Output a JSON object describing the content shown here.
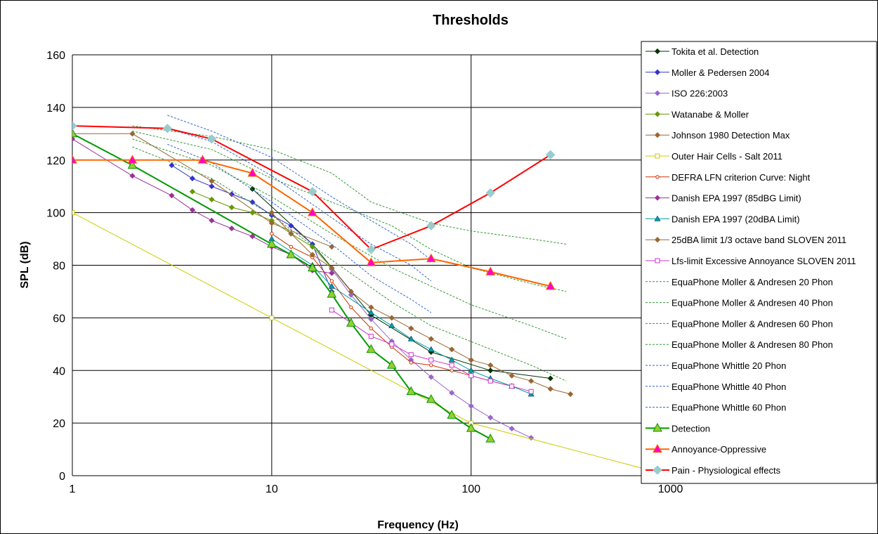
{
  "chart_data": {
    "type": "line",
    "title": "Thresholds",
    "xlabel": "Frequency (Hz)",
    "ylabel": "SPL (dB)",
    "x_scale": "log",
    "xlim": [
      1,
      3000
    ],
    "ylim": [
      0,
      160
    ],
    "x_ticks": [
      1,
      10,
      100,
      1000
    ],
    "x_tick_labels": [
      "1",
      "10",
      "100",
      "1000"
    ],
    "y_ticks": [
      0,
      20,
      40,
      60,
      80,
      100,
      120,
      140,
      160
    ],
    "y_tick_labels": [
      "0",
      "20",
      "40",
      "60",
      "80",
      "100",
      "120",
      "140",
      "160"
    ],
    "grid": true,
    "legend_position": "right",
    "series": [
      {
        "name": "Tokita et al. Detection",
        "color": "#003300",
        "marker": "diamond",
        "dash": "",
        "width": 1,
        "points": [
          [
            8,
            109
          ],
          [
            16,
            88
          ],
          [
            31.5,
            61
          ],
          [
            63,
            47
          ],
          [
            125,
            40
          ],
          [
            250,
            37
          ]
        ]
      },
      {
        "name": "Moller & Pedersen 2004",
        "color": "#3333cc",
        "marker": "diamond",
        "dash": "",
        "width": 1,
        "points": [
          [
            3.15,
            118
          ],
          [
            4,
            113
          ],
          [
            5,
            110
          ],
          [
            6.3,
            107
          ],
          [
            8,
            104
          ],
          [
            10,
            99
          ],
          [
            12.5,
            95
          ],
          [
            16,
            88
          ],
          [
            20,
            70
          ]
        ]
      },
      {
        "name": "ISO 226:2003",
        "color": "#9966cc",
        "marker": "diamond",
        "dash": "",
        "width": 1,
        "points": [
          [
            20,
            78.5
          ],
          [
            25,
            68.7
          ],
          [
            31.5,
            59.5
          ],
          [
            40,
            51.1
          ],
          [
            50,
            44
          ],
          [
            63,
            37.5
          ],
          [
            80,
            31.5
          ],
          [
            100,
            26.5
          ],
          [
            125,
            22.1
          ],
          [
            160,
            17.9
          ],
          [
            200,
            14.4
          ]
        ]
      },
      {
        "name": "Watanabe & Moller",
        "color": "#669900",
        "marker": "diamond",
        "dash": "",
        "width": 1,
        "points": [
          [
            4,
            108
          ],
          [
            5,
            105
          ],
          [
            6.3,
            102
          ],
          [
            8,
            100
          ],
          [
            10,
            97
          ],
          [
            12.5,
            92
          ],
          [
            16,
            87
          ],
          [
            20,
            79
          ]
        ]
      },
      {
        "name": "Johnson 1980 Detection Max",
        "color": "#996633",
        "marker": "diamond",
        "dash": "",
        "width": 1,
        "points": [
          [
            1,
            130
          ],
          [
            2,
            130
          ],
          [
            5,
            112
          ],
          [
            10,
            96
          ],
          [
            20,
            87
          ]
        ]
      },
      {
        "name": "Outer Hair Cells - Salt 2011",
        "color": "#cccc00",
        "marker": "square",
        "dash": "",
        "width": 1,
        "points": [
          [
            1,
            100
          ],
          [
            10,
            60
          ],
          [
            100,
            20
          ],
          [
            1000,
            0
          ]
        ]
      },
      {
        "name": "DEFRA LFN criterion Curve: Night",
        "color": "#cc3300",
        "marker": "circle",
        "dash": "",
        "width": 1,
        "points": [
          [
            10,
            92
          ],
          [
            12.5,
            87
          ],
          [
            16,
            83
          ],
          [
            20,
            74
          ],
          [
            25,
            64
          ],
          [
            31.5,
            56
          ],
          [
            40,
            49
          ],
          [
            50,
            43
          ],
          [
            63,
            42
          ],
          [
            80,
            40
          ],
          [
            100,
            38
          ],
          [
            125,
            36
          ],
          [
            160,
            34
          ]
        ]
      },
      {
        "name": "Danish EPA 1997 (85dBG Limit)",
        "color": "#993399",
        "marker": "diamond",
        "dash": "",
        "width": 1,
        "points": [
          [
            1,
            128
          ],
          [
            2,
            114
          ],
          [
            3.15,
            106.5
          ],
          [
            4,
            101
          ],
          [
            5,
            97
          ],
          [
            6.3,
            94
          ],
          [
            8,
            91
          ],
          [
            10,
            87
          ],
          [
            12.5,
            84
          ],
          [
            16,
            78
          ],
          [
            20,
            77
          ]
        ]
      },
      {
        "name": "Danish EPA 1997 (20dBA Limit)",
        "color": "#00a0a0",
        "marker": "triangle",
        "dash": "",
        "width": 1,
        "points": [
          [
            10,
            90
          ],
          [
            16,
            80
          ],
          [
            20,
            72
          ],
          [
            31.5,
            62
          ],
          [
            40,
            57
          ],
          [
            50,
            52
          ],
          [
            63,
            48
          ],
          [
            80,
            44
          ],
          [
            100,
            40
          ],
          [
            125,
            37
          ],
          [
            160,
            34
          ],
          [
            200,
            31
          ]
        ]
      },
      {
        "name": "25dBA limit 1/3 octave band SLOVEN 2011",
        "color": "#996633",
        "marker": "diamond",
        "dash": "",
        "width": 1,
        "points": [
          [
            10,
            100
          ],
          [
            12.5,
            92
          ],
          [
            16,
            84
          ],
          [
            20,
            79
          ],
          [
            25,
            70
          ],
          [
            31.5,
            64
          ],
          [
            40,
            60
          ],
          [
            50,
            56
          ],
          [
            63,
            52
          ],
          [
            80,
            48
          ],
          [
            100,
            44
          ],
          [
            125,
            42
          ],
          [
            160,
            38
          ],
          [
            200,
            36
          ],
          [
            250,
            33
          ],
          [
            315,
            31
          ]
        ]
      },
      {
        "name": "Lfs-limit Excessive Annoyance SLOVEN 2011",
        "color": "#cc33cc",
        "marker": "square",
        "dash": "",
        "width": 1,
        "points": [
          [
            20,
            63
          ],
          [
            31.5,
            53
          ],
          [
            40,
            50
          ],
          [
            50,
            46
          ],
          [
            63,
            44
          ],
          [
            80,
            42
          ],
          [
            100,
            38
          ],
          [
            125,
            36
          ],
          [
            160,
            34
          ],
          [
            200,
            32
          ]
        ]
      },
      {
        "name": "EquaPhone Moller & Andresen 20 Phon",
        "color": "#339933",
        "marker": "none",
        "dash": "3,2",
        "width": 1,
        "points": [
          [
            2,
            125
          ],
          [
            5,
            113
          ],
          [
            10,
            99
          ],
          [
            20,
            82
          ],
          [
            40,
            66
          ],
          [
            63,
            57
          ],
          [
            100,
            51
          ],
          [
            200,
            42
          ],
          [
            300,
            36
          ]
        ]
      },
      {
        "name": "EquaPhone Moller & Andresen 40 Phon",
        "color": "#339933",
        "marker": "none",
        "dash": "3,2",
        "width": 1,
        "points": [
          [
            2,
            128
          ],
          [
            5,
            118
          ],
          [
            10,
            106
          ],
          [
            20,
            92
          ],
          [
            40,
            79
          ],
          [
            63,
            72
          ],
          [
            100,
            65
          ],
          [
            200,
            57
          ],
          [
            300,
            52
          ]
        ]
      },
      {
        "name": "EquaPhone Moller & Andresen 60 Phon",
        "color": "#339933",
        "marker": "none",
        "dash": "3,2",
        "width": 1,
        "points": [
          [
            2,
            131
          ],
          [
            5,
            124
          ],
          [
            10,
            113
          ],
          [
            20,
            104
          ],
          [
            40,
            95
          ],
          [
            63,
            86
          ],
          [
            100,
            79
          ],
          [
            200,
            73
          ],
          [
            300,
            70
          ]
        ]
      },
      {
        "name": "EquaPhone Moller & Andresen 80 Phon",
        "color": "#339933",
        "marker": "none",
        "dash": "3,2",
        "width": 1,
        "points": [
          [
            2,
            133
          ],
          [
            5,
            129
          ],
          [
            10,
            124
          ],
          [
            20,
            115
          ],
          [
            31.5,
            104
          ],
          [
            63,
            96
          ],
          [
            100,
            93
          ],
          [
            200,
            90
          ],
          [
            300,
            88
          ]
        ]
      },
      {
        "name": "EquaPhone Whittle 20 Phon",
        "color": "#3366cc",
        "marker": "none",
        "dash": "3,2",
        "width": 1,
        "points": [
          [
            3,
            126
          ],
          [
            5,
            119
          ],
          [
            10,
            104
          ],
          [
            20,
            88
          ],
          [
            31.5,
            76
          ],
          [
            50,
            67
          ],
          [
            63,
            62
          ]
        ]
      },
      {
        "name": "EquaPhone Whittle 40 Phon",
        "color": "#3366cc",
        "marker": "none",
        "dash": "3,2",
        "width": 1,
        "points": [
          [
            3,
            132
          ],
          [
            5,
            127
          ],
          [
            10,
            114
          ],
          [
            20,
            98
          ],
          [
            31.5,
            88
          ],
          [
            50,
            80
          ],
          [
            63,
            74
          ]
        ]
      },
      {
        "name": "EquaPhone Whittle 60 Phon",
        "color": "#3366cc",
        "marker": "none",
        "dash": "3,2",
        "width": 1,
        "points": [
          [
            3,
            137
          ],
          [
            5,
            131
          ],
          [
            10,
            121
          ],
          [
            20,
            106
          ],
          [
            31.5,
            97
          ],
          [
            50,
            88
          ],
          [
            63,
            82
          ]
        ]
      },
      {
        "name": "Detection",
        "color": "#009900",
        "marker": "big-triangle",
        "marker_fill": "#99cc33",
        "dash": "",
        "width": 2,
        "points": [
          [
            1,
            130
          ],
          [
            2,
            118
          ],
          [
            10,
            88
          ],
          [
            12.5,
            84
          ],
          [
            16,
            79
          ],
          [
            20,
            69
          ],
          [
            25,
            58
          ],
          [
            31.5,
            48
          ],
          [
            40,
            42
          ],
          [
            50,
            32
          ],
          [
            63,
            29
          ],
          [
            80,
            23
          ],
          [
            100,
            18
          ],
          [
            125,
            14
          ]
        ]
      },
      {
        "name": "Annoyance-Oppressive",
        "color": "#ff6600",
        "marker": "big-triangle",
        "marker_fill": "#ff00cc",
        "dash": "",
        "width": 2,
        "points": [
          [
            1,
            120
          ],
          [
            2,
            120
          ],
          [
            4.5,
            120
          ],
          [
            8,
            115
          ],
          [
            16,
            100
          ],
          [
            31.5,
            81
          ],
          [
            63,
            82.5
          ],
          [
            125,
            77.5
          ],
          [
            250,
            72
          ]
        ]
      },
      {
        "name": "Pain - Physiological effects",
        "color": "#ff0000",
        "marker": "big-diamond",
        "marker_fill": "#99cccc",
        "dash": "",
        "width": 2,
        "points": [
          [
            1,
            133
          ],
          [
            3,
            132
          ],
          [
            5,
            128
          ],
          [
            16,
            108
          ],
          [
            31.5,
            86
          ],
          [
            63,
            95
          ],
          [
            125,
            107.5
          ],
          [
            250,
            122
          ]
        ]
      }
    ]
  }
}
